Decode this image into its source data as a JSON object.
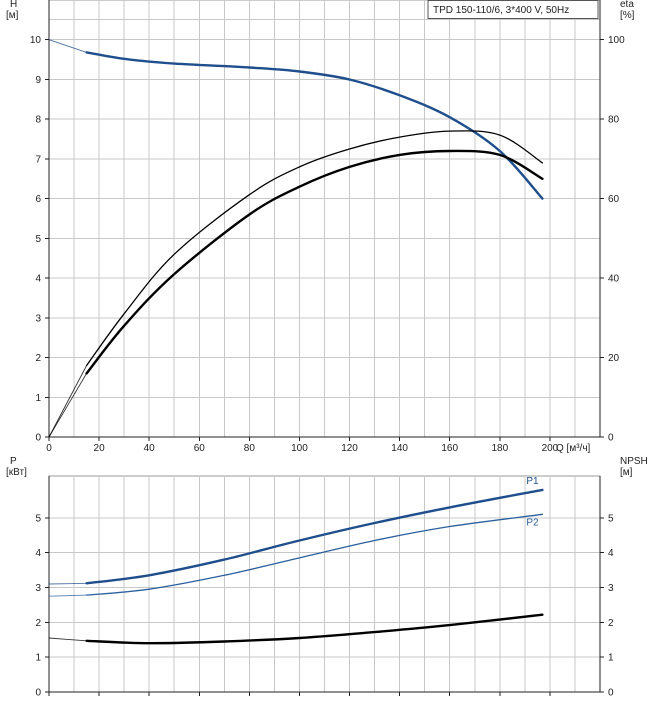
{
  "chart_data": [
    {
      "type": "line",
      "title": "TPD 150-110/6, 3*400 V, 50Hz",
      "xlabel": "Q [м³/ч]",
      "xlim": [
        0,
        220
      ],
      "x_ticks": [
        "0",
        "20",
        "40",
        "60",
        "80",
        "100",
        "120",
        "140",
        "160",
        "180",
        "200"
      ],
      "left_axis": {
        "label_top": "H",
        "label_unit": "[м]",
        "lim": [
          0,
          11
        ],
        "ticks": [
          "0",
          "1",
          "2",
          "3",
          "4",
          "5",
          "6",
          "7",
          "8",
          "9",
          "10"
        ]
      },
      "right_axis": {
        "label_top": "eta",
        "label_unit": "[%]",
        "lim": [
          0,
          110
        ],
        "ticks": [
          "0",
          "20",
          "40",
          "60",
          "80",
          "100"
        ]
      },
      "grid": true,
      "series": [
        {
          "axis": "left",
          "color": "#1f4e8c",
          "extrapolated_x": [
            0,
            15
          ],
          "x": [
            0,
            15,
            30,
            50,
            80,
            100,
            120,
            140,
            160,
            180,
            197
          ],
          "y": [
            10.0,
            9.68,
            9.52,
            9.4,
            9.3,
            9.2,
            9.0,
            8.6,
            8.05,
            7.2,
            6.0
          ]
        },
        {
          "axis": "right",
          "color": "#000000",
          "extrapolated_x": [
            0,
            15
          ],
          "x": [
            0,
            15,
            30,
            50,
            80,
            100,
            120,
            140,
            160,
            180,
            197
          ],
          "y": [
            0,
            16,
            28,
            41,
            56,
            63,
            68,
            71,
            72,
            71,
            65
          ]
        },
        {
          "axis": "right",
          "color": "#000000",
          "thin": true,
          "extrapolated_x": [
            0,
            15
          ],
          "x": [
            0,
            15,
            30,
            50,
            80,
            100,
            120,
            140,
            160,
            180,
            197
          ],
          "y": [
            0,
            18,
            31,
            46,
            61,
            68,
            72.5,
            75.5,
            77,
            76,
            69
          ]
        }
      ]
    },
    {
      "type": "line",
      "xlim": [
        0,
        220
      ],
      "left_axis": {
        "label_top": "P",
        "label_unit": "[кВт]",
        "lim": [
          0,
          6.2
        ],
        "ticks": [
          "0",
          "1",
          "2",
          "3",
          "4",
          "5"
        ]
      },
      "right_axis": {
        "label_top": "NPSH",
        "label_unit": "[м]",
        "lim": [
          0,
          6.2
        ],
        "ticks": [
          "0",
          "1",
          "2",
          "3",
          "4",
          "5"
        ]
      },
      "grid": true,
      "series": [
        {
          "name": "P1",
          "axis": "left",
          "color": "#1f4e8c",
          "extrapolated_x": [
            0,
            15
          ],
          "x": [
            0,
            15,
            40,
            70,
            100,
            130,
            160,
            197
          ],
          "y": [
            3.1,
            3.12,
            3.35,
            3.8,
            4.35,
            4.85,
            5.3,
            5.8
          ]
        },
        {
          "name": "P2",
          "axis": "left",
          "color": "#2a5f9e",
          "thin": true,
          "extrapolated_x": [
            0,
            15
          ],
          "x": [
            0,
            15,
            40,
            70,
            100,
            130,
            160,
            197
          ],
          "y": [
            2.75,
            2.78,
            2.95,
            3.35,
            3.85,
            4.35,
            4.75,
            5.1
          ]
        },
        {
          "axis": "right",
          "color": "#000000",
          "extrapolated_x": [
            0,
            15
          ],
          "x": [
            0,
            15,
            40,
            70,
            100,
            130,
            160,
            197
          ],
          "y": [
            1.55,
            1.47,
            1.4,
            1.45,
            1.55,
            1.72,
            1.92,
            2.22
          ]
        }
      ]
    }
  ]
}
